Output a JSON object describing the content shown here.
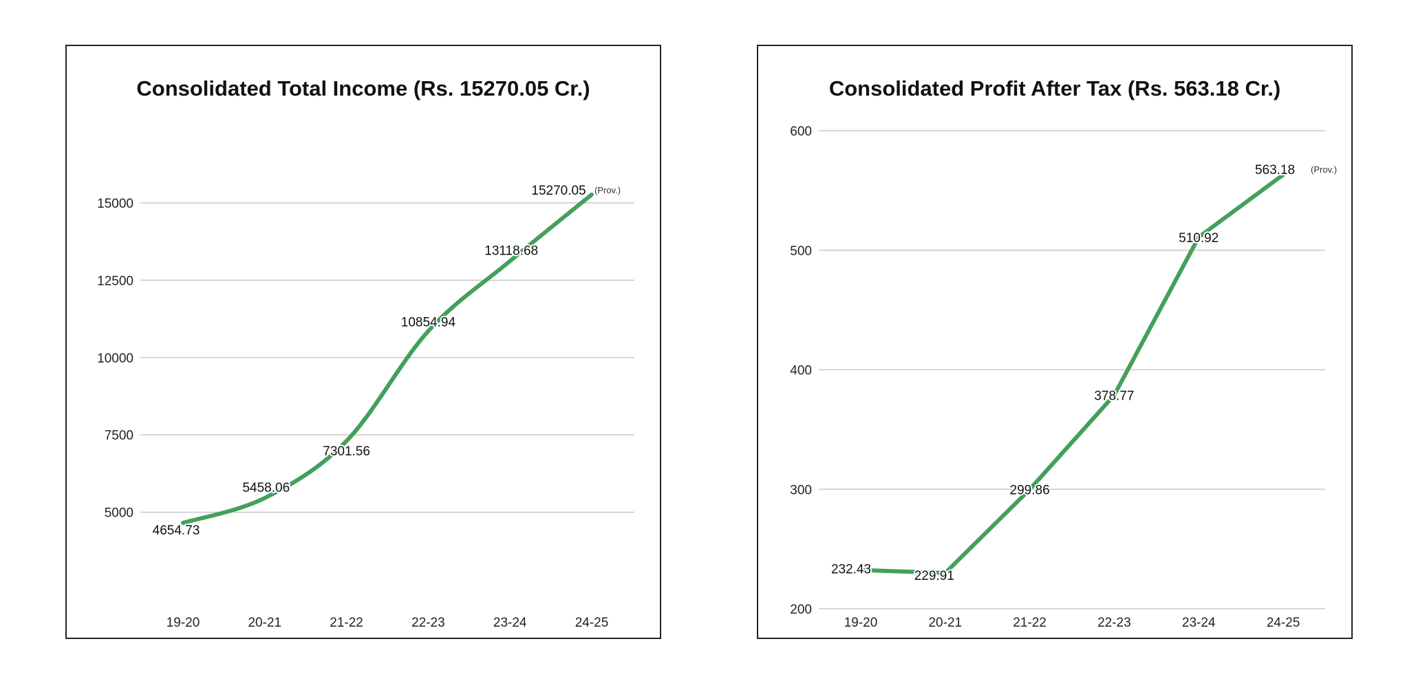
{
  "chart_data": [
    {
      "type": "line",
      "title": "Consolidated Total Income (Rs. 15270.05 Cr.)",
      "categories": [
        "19-20",
        "20-21",
        "21-22",
        "22-23",
        "23-24",
        "24-25"
      ],
      "series": [
        {
          "values": [
            4654.73,
            5458.06,
            7301.56,
            10854.94,
            13118.68,
            15270.05
          ],
          "labels": [
            "4654.73",
            "5458.06",
            "7301.56",
            "10854.94",
            "13118.68",
            "15270.05"
          ]
        }
      ],
      "yticks": [
        5000,
        7500,
        10000,
        12500,
        15000
      ],
      "ytick_labels": [
        "5000",
        "7500",
        "10000",
        "12500",
        "15000"
      ],
      "ylim": [
        2500,
        16000
      ],
      "smooth": true,
      "grid": true,
      "line_color": "#43a05a",
      "annotation": "(Prov.)"
    },
    {
      "type": "line",
      "title": "Consolidated Profit After Tax (Rs. 563.18 Cr.)",
      "categories": [
        "19-20",
        "20-21",
        "21-22",
        "22-23",
        "23-24",
        "24-25"
      ],
      "series": [
        {
          "values": [
            232.43,
            229.91,
            299.86,
            378.77,
            510.92,
            563.18
          ],
          "labels": [
            "232.43",
            "229.91",
            "299.86",
            "378.77",
            "510.92",
            "563.18"
          ]
        }
      ],
      "yticks": [
        200,
        300,
        400,
        500,
        600
      ],
      "ytick_labels": [
        "200",
        "300",
        "400",
        "500",
        "600"
      ],
      "ylim": [
        200,
        600
      ],
      "smooth": false,
      "grid": true,
      "line_color": "#43a05a",
      "annotation": "(Prov.)"
    }
  ]
}
